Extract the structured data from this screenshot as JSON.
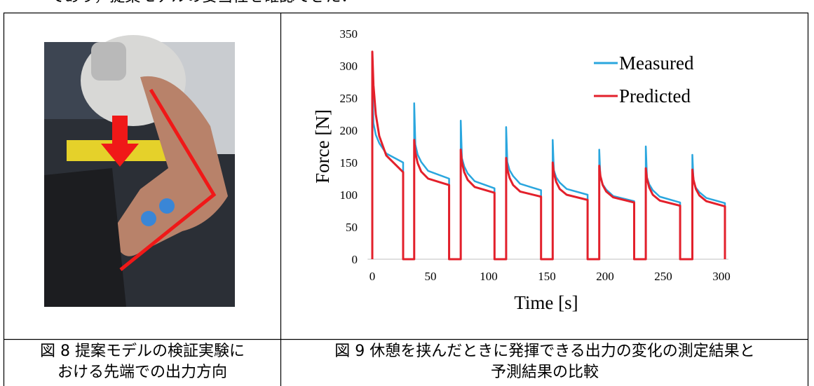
{
  "text_above": "であり，提案モデルの妥当性を確認できた．",
  "figure8": {
    "caption": [
      "図 8 提案モデルの検証実験に",
      "おける先端での出力方向"
    ]
  },
  "figure9": {
    "caption": [
      "図 9 休憩を挟んだときに発揮できる出力の変化の測定結果と",
      "予測結果の比較"
    ]
  },
  "chart_data": {
    "type": "line",
    "x_label": "Time [s]",
    "y_label": "Force [N]",
    "x": [
      0,
      0,
      1,
      3,
      6,
      12,
      26.5,
      26.5,
      36,
      36,
      37,
      39,
      42,
      48,
      66,
      66,
      76,
      76,
      77,
      79,
      82,
      88,
      105,
      105,
      115,
      115,
      116,
      118,
      121,
      127,
      145,
      145,
      155,
      155,
      156,
      158,
      161,
      167,
      185,
      185,
      195,
      195,
      196,
      198,
      201,
      207,
      225,
      225,
      235,
      235,
      236,
      238,
      241,
      247,
      264.5,
      264.5,
      275,
      275,
      276,
      278,
      281,
      287,
      303,
      303
    ],
    "series": [
      {
        "name": "Measured",
        "color": "#2aa6de",
        "values": [
          0,
          285,
          211,
          193,
          180,
          164,
          150,
          0,
          0,
          242,
          178,
          162,
          151,
          137,
          125,
          0,
          0,
          215,
          157,
          144,
          133,
          121,
          110,
          0,
          0,
          205,
          151,
          138,
          129,
          117,
          107,
          0,
          0,
          185,
          138,
          127,
          119,
          109,
          100,
          0,
          0,
          170,
          126,
          116,
          108,
          98,
          90,
          0,
          0,
          175,
          127,
          116,
          107,
          97,
          88,
          0,
          0,
          162,
          121,
          111,
          104,
          95,
          87,
          0
        ]
      },
      {
        "name": "Predicted",
        "color": "#e3202b",
        "values": [
          0,
          322,
          270,
          225,
          191,
          161,
          135,
          0,
          0,
          185,
          165,
          149,
          136,
          125,
          115,
          0,
          0,
          170,
          151,
          135,
          123,
          112,
          103,
          0,
          0,
          157,
          140,
          126,
          115,
          105,
          97,
          0,
          0,
          150,
          134,
          120,
          109,
          100,
          92,
          0,
          0,
          145,
          129,
          115,
          105,
          96,
          88,
          0,
          0,
          141,
          125,
          111,
          100,
          91,
          83,
          0,
          0,
          139,
          123,
          109,
          99,
          90,
          82,
          0
        ]
      }
    ],
    "xlim": [
      -4,
      306
    ],
    "ylim": [
      0,
      350
    ],
    "xticks": [
      0,
      50,
      100,
      150,
      200,
      250,
      300
    ],
    "yticks": [
      0,
      50,
      100,
      150,
      200,
      250,
      300,
      350
    ],
    "legend": "upper right"
  }
}
